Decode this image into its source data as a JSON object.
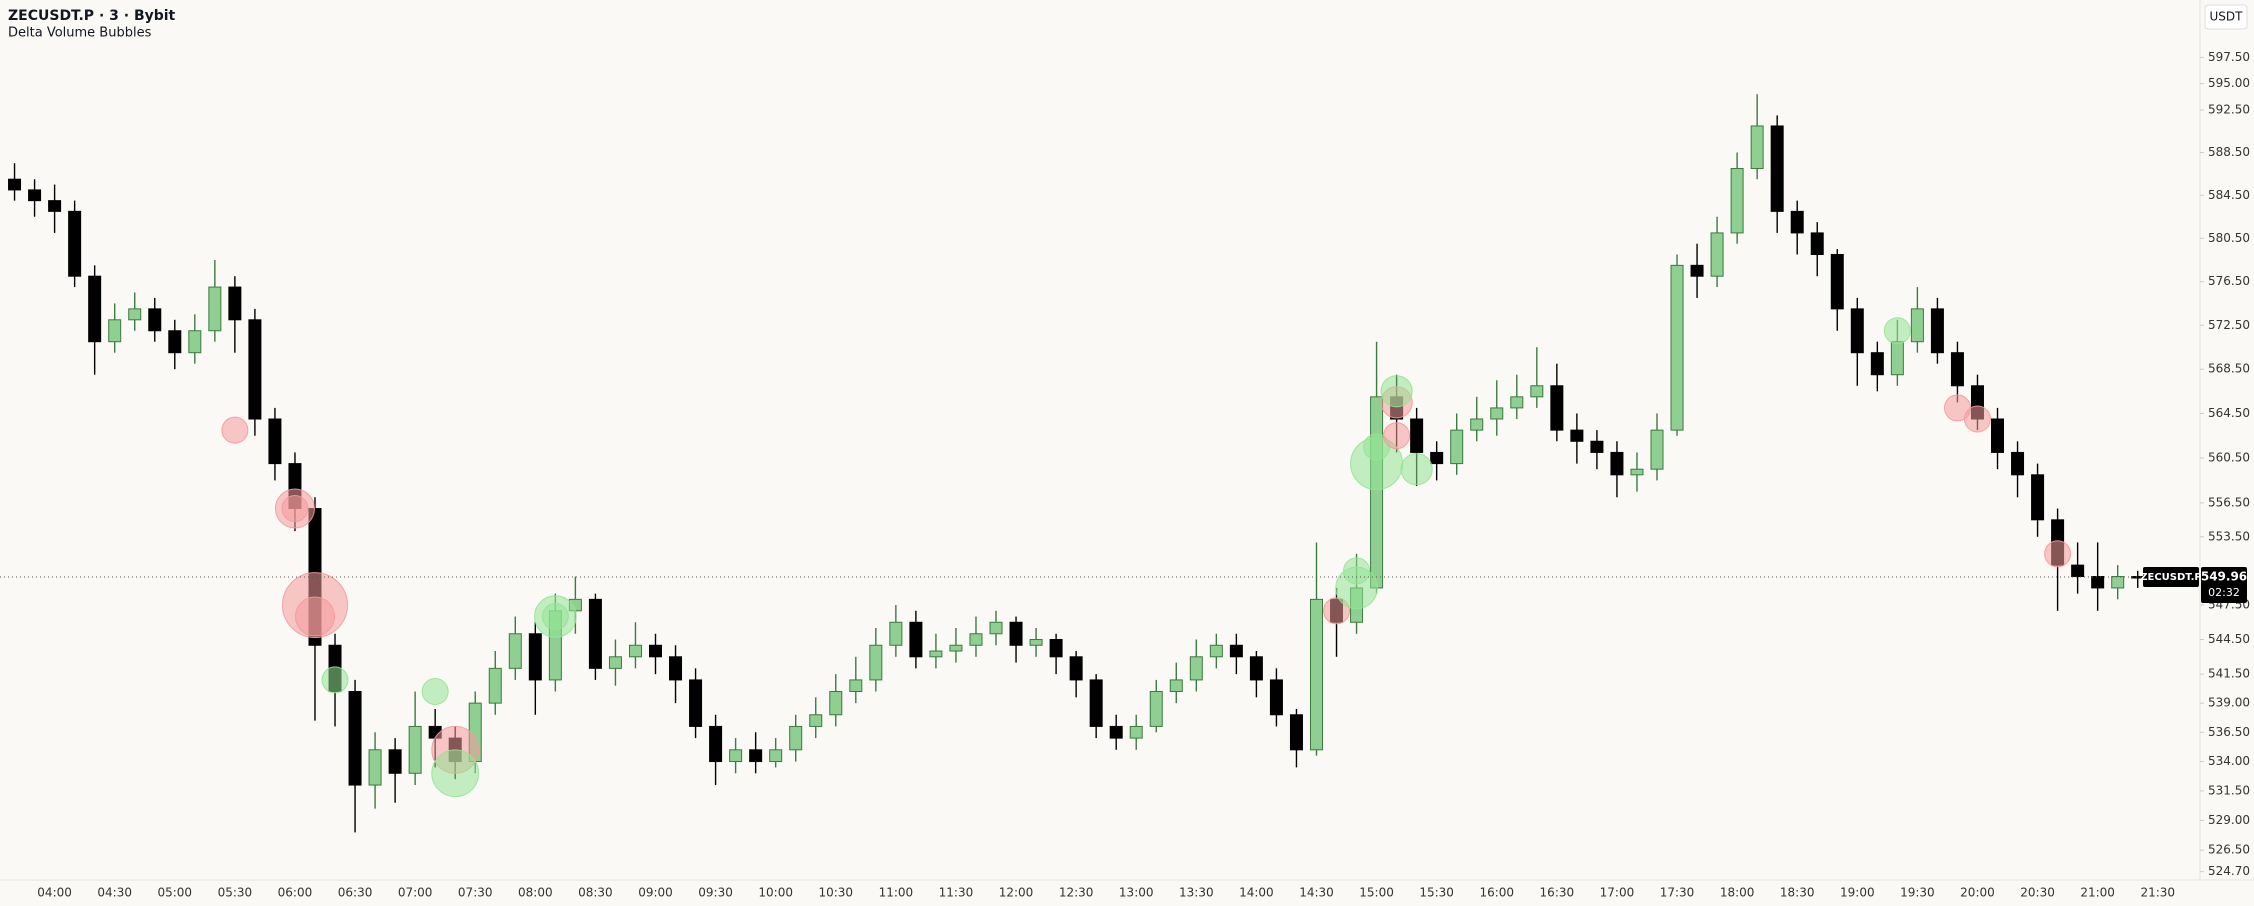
{
  "chart_data": {
    "type": "candlestick",
    "title": "ZECUSDT.P · 3 · Bybit",
    "subtitle": "Delta Volume Bubbles",
    "currency_button": "USDT",
    "price_label": "ZECUSDT.P",
    "countdown": "02:32",
    "log_scale": true,
    "grid": false,
    "up_color": "#8fcf92",
    "up_border": "#3c7a40",
    "down_color": "#000000",
    "categories": [
      null,
      null,
      "04:00",
      null,
      null,
      "04:30",
      null,
      null,
      "05:00",
      null,
      null,
      "05:30",
      null,
      null,
      "06:00",
      null,
      null,
      "06:30",
      null,
      null,
      "07:00",
      null,
      null,
      "07:30",
      null,
      null,
      "08:00",
      null,
      null,
      "08:30",
      null,
      null,
      "09:00",
      null,
      null,
      "09:30",
      null,
      null,
      "10:00",
      null,
      null,
      "10:30",
      null,
      null,
      "11:00",
      null,
      null,
      "11:30",
      null,
      null,
      "12:00",
      null,
      null,
      "12:30",
      null,
      null,
      "13:00",
      null,
      null,
      "13:30",
      null,
      null,
      "14:00",
      null,
      null,
      "14:30",
      null,
      null,
      "15:00",
      null,
      null,
      "15:30",
      null,
      null,
      "16:00",
      null,
      null,
      "16:30",
      null,
      null,
      "17:00",
      null,
      null,
      "17:30",
      null,
      null,
      "18:00",
      null,
      null,
      "18:30",
      null,
      null,
      "19:00",
      null,
      null,
      "19:30",
      null,
      null,
      "20:00",
      null,
      null,
      "20:30",
      null,
      null,
      "21:00",
      null,
      null,
      "21:30"
    ],
    "open": [
      586,
      585,
      584,
      583,
      577,
      571,
      573,
      574,
      572,
      570,
      572,
      576,
      573,
      564,
      560,
      556,
      544,
      540,
      532,
      535,
      533,
      537,
      536,
      534,
      539,
      542,
      545,
      541,
      547,
      548,
      542,
      543,
      544,
      543,
      541,
      537,
      534,
      535,
      534,
      535,
      537,
      538,
      540,
      541,
      544,
      546,
      543,
      543.5,
      544,
      545,
      546,
      544,
      544.5,
      543,
      541,
      537,
      536,
      537,
      540,
      541,
      543,
      544,
      543,
      541,
      538,
      535,
      548,
      546,
      549,
      566,
      564,
      561,
      560,
      563,
      564,
      565,
      566,
      567,
      563,
      562,
      561,
      559,
      559.5,
      563,
      578,
      577,
      581,
      587,
      591,
      583,
      581,
      579,
      574,
      570,
      568,
      571,
      574,
      570,
      567,
      564,
      561,
      559,
      555,
      551,
      550,
      549,
      550,
      null
    ],
    "high": [
      587.5,
      586,
      585.5,
      584,
      578,
      574.5,
      575.5,
      575,
      573,
      573.5,
      578.5,
      577,
      574,
      565,
      561,
      557,
      545,
      541,
      536.5,
      536,
      540,
      538.5,
      537,
      540,
      543.5,
      546.5,
      546,
      548.5,
      550,
      548.5,
      544.5,
      546,
      545,
      544,
      542,
      538,
      536,
      536.5,
      536,
      538,
      539.5,
      541.5,
      543,
      545.5,
      547.5,
      547,
      545,
      545.5,
      546.5,
      547,
      546.5,
      545.5,
      545,
      543.5,
      541.5,
      538,
      538,
      541,
      542.5,
      544.5,
      545,
      545,
      543.5,
      542,
      538.5,
      553,
      549,
      552,
      571,
      568,
      565,
      562,
      564.5,
      566,
      567.5,
      568,
      570.5,
      569,
      564.5,
      563,
      562,
      561,
      564.5,
      579,
      580,
      582.5,
      588.5,
      594,
      592,
      584,
      582,
      579.5,
      575,
      571,
      573,
      576,
      575,
      571,
      568,
      565,
      562,
      560,
      556,
      553,
      553,
      551,
      550.5,
      null
    ],
    "low": [
      584,
      582.5,
      581,
      576,
      568,
      570,
      572,
      571,
      568.5,
      569,
      571,
      570,
      562.5,
      558.5,
      554,
      537.5,
      537,
      528,
      530,
      530.5,
      532,
      533.5,
      532.5,
      533,
      538,
      541,
      538,
      540,
      545,
      541,
      540.5,
      542,
      541.5,
      539,
      536,
      532,
      533,
      533,
      533.5,
      534,
      536,
      537,
      539,
      540,
      543,
      542,
      542,
      542.5,
      543,
      544,
      542.5,
      543,
      541.5,
      539.5,
      536,
      535,
      535,
      536.5,
      539,
      540,
      542,
      541.5,
      539.5,
      537,
      533.5,
      534.5,
      543,
      545,
      548.5,
      561,
      558,
      558.5,
      559,
      562,
      562.5,
      564,
      565,
      562,
      560,
      559.5,
      557,
      557.5,
      558.5,
      562.5,
      575,
      576,
      580,
      586,
      581,
      579,
      577,
      572,
      567,
      566.5,
      567,
      570,
      569,
      565.5,
      563,
      559.5,
      557,
      553.5,
      547,
      548.5,
      547,
      548,
      549,
      null
    ],
    "close": [
      585,
      584,
      583,
      577,
      571,
      573,
      574,
      572,
      570,
      572,
      576,
      573,
      564,
      560,
      556,
      544,
      540,
      532,
      535,
      533,
      537,
      536,
      534,
      539,
      542,
      545,
      541,
      547,
      548,
      542,
      543,
      544,
      543,
      541,
      537,
      534,
      535,
      534,
      535,
      537,
      538,
      540,
      541,
      544,
      546,
      543,
      543.5,
      544,
      545,
      546,
      544,
      544.5,
      543,
      541,
      537,
      536,
      537,
      540,
      541,
      543,
      544,
      543,
      541,
      538,
      535,
      548,
      546,
      549,
      566,
      564,
      561,
      560,
      563,
      564,
      565,
      566,
      567,
      563,
      562,
      561,
      559,
      559.5,
      563,
      578,
      577,
      581,
      587,
      591,
      583,
      581,
      579,
      574,
      570,
      568,
      571,
      574,
      570,
      567,
      564,
      561,
      559,
      555,
      551,
      550,
      549,
      550,
      549.96,
      null
    ],
    "bubbles": {
      "index": [
        11,
        14,
        14,
        15,
        15,
        16,
        21,
        22,
        22,
        27,
        27,
        66,
        67,
        67,
        68,
        68,
        69,
        69,
        69,
        70,
        94,
        97,
        98,
        102
      ],
      "values": [
        563,
        556,
        556,
        547.5,
        546.5,
        541,
        540,
        535,
        533,
        546.5,
        546.5,
        547,
        549,
        550.5,
        560,
        561.5,
        565.5,
        566.5,
        562.5,
        559.5,
        572,
        565,
        564,
        552
      ],
      "sizes": [
        1,
        1.5,
        1,
        2.5,
        1.5,
        1,
        1,
        1.8,
        1.8,
        1.6,
        1,
        1,
        1.6,
        1,
        2,
        1,
        1.2,
        1.2,
        1,
        1.2,
        1,
        1,
        1,
        1
      ],
      "colors": [
        "#f49a9a",
        "#f49a9a",
        "#f49a9a",
        "#f49a9a",
        "#f49a9a",
        "#93e493",
        "#93e493",
        "#f49a9a",
        "#93e493",
        "#93e493",
        "#93e493",
        "#f49a9a",
        "#93e493",
        "#93e493",
        "#93e493",
        "#93e493",
        "#f49a9a",
        "#93e493",
        "#f49a9a",
        "#93e493",
        "#93e493",
        "#f49a9a",
        "#f49a9a",
        "#f49a9a"
      ]
    },
    "ylim": [
      524,
      603
    ],
    "yticks": [
      {
        "value": 597.5,
        "label": "597.50"
      },
      {
        "value": 595,
        "label": "595.00"
      },
      {
        "value": 592.5,
        "label": "592.50"
      },
      {
        "value": 588.5,
        "label": "588.50"
      },
      {
        "value": 584.5,
        "label": "584.50"
      },
      {
        "value": 580.5,
        "label": "580.50"
      },
      {
        "value": 576.5,
        "label": "576.50"
      },
      {
        "value": 572.5,
        "label": "572.50"
      },
      {
        "value": 568.5,
        "label": "568.50"
      },
      {
        "value": 564.5,
        "label": "564.50"
      },
      {
        "value": 560.5,
        "label": "560.50"
      },
      {
        "value": 556.5,
        "label": "556.50"
      },
      {
        "value": 553.5,
        "label": "553.50"
      },
      {
        "value": 547.5,
        "label": "547.50"
      },
      {
        "value": 544.5,
        "label": "544.50"
      },
      {
        "value": 541.5,
        "label": "541.50"
      },
      {
        "value": 539,
        "label": "539.00"
      },
      {
        "value": 536.5,
        "label": "536.50"
      },
      {
        "value": 534,
        "label": "534.00"
      },
      {
        "value": 531.5,
        "label": "531.50"
      },
      {
        "value": 529,
        "label": "529.00"
      },
      {
        "value": 526.5,
        "label": "526.50"
      },
      {
        "value": 524.7,
        "label": "524.70"
      }
    ]
  }
}
